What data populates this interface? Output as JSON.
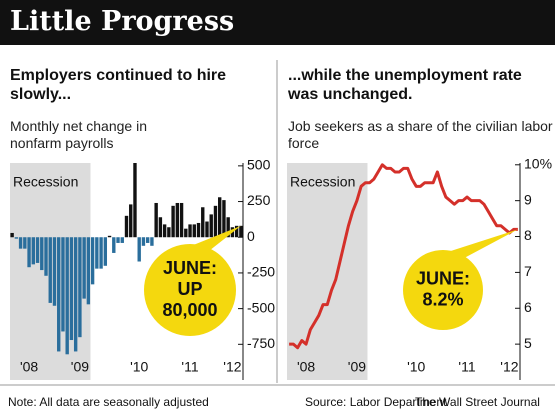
{
  "header": {
    "title": "Little Progress"
  },
  "chart_data": [
    {
      "type": "bar",
      "title": "Employers continued to hire slowly...",
      "subtitle": "Monthly net change in nonfarm payrolls",
      "categories": [
        null,
        null,
        null,
        null,
        "'08",
        null,
        null,
        null,
        null,
        null,
        null,
        null,
        null,
        null,
        null,
        null,
        "'09",
        null,
        null,
        null,
        null,
        null,
        null,
        null,
        null,
        null,
        null,
        null,
        null,
        null,
        "'10",
        null,
        null,
        null,
        null,
        null,
        null,
        null,
        null,
        null,
        null,
        null,
        "'11",
        null,
        null,
        null,
        null,
        null,
        null,
        null,
        null,
        null,
        "'12",
        null,
        null
      ],
      "values": [
        30,
        -10,
        -80,
        -80,
        -210,
        -190,
        -180,
        -230,
        -270,
        -460,
        -480,
        -800,
        -660,
        -820,
        -720,
        -800,
        -700,
        -430,
        -470,
        -330,
        -220,
        -220,
        -200,
        10,
        -110,
        -40,
        -40,
        150,
        230,
        520,
        -170,
        -60,
        -40,
        -60,
        240,
        140,
        90,
        70,
        220,
        240,
        240,
        60,
        90,
        90,
        100,
        210,
        110,
        160,
        220,
        280,
        260,
        140,
        70,
        80,
        80
      ],
      "color_positive": "#111111",
      "color_negative": "#2a6e9c",
      "ylim": [
        -1000,
        520
      ],
      "yticks": [
        500,
        250,
        0,
        -250,
        -500,
        -750
      ],
      "shade": {
        "label": "Recession",
        "from": 0,
        "to": 18
      },
      "callout": [
        "JUNE:",
        "UP",
        "80,000"
      ]
    },
    {
      "type": "line",
      "title": "...while the unemployment rate was unchanged.",
      "subtitle": "Job seekers as a share of the civilian labor force",
      "categories": [
        null,
        null,
        null,
        null,
        "'08",
        null,
        null,
        null,
        null,
        null,
        null,
        null,
        null,
        null,
        null,
        null,
        "'09",
        null,
        null,
        null,
        null,
        null,
        null,
        null,
        null,
        null,
        null,
        null,
        null,
        null,
        "'10",
        null,
        null,
        null,
        null,
        null,
        null,
        null,
        null,
        null,
        null,
        null,
        "'11",
        null,
        null,
        null,
        null,
        null,
        null,
        null,
        null,
        null,
        "'12",
        null,
        null
      ],
      "values": [
        5.0,
        5.0,
        4.9,
        5.1,
        5.0,
        5.4,
        5.6,
        5.8,
        6.1,
        6.1,
        6.5,
        6.8,
        7.3,
        7.8,
        8.3,
        8.7,
        9.0,
        9.4,
        9.5,
        9.5,
        9.6,
        9.8,
        10.0,
        9.9,
        9.9,
        9.8,
        9.8,
        9.9,
        9.9,
        9.6,
        9.4,
        9.4,
        9.5,
        9.5,
        9.5,
        9.8,
        9.4,
        9.1,
        9.0,
        8.9,
        9.0,
        9.0,
        9.1,
        9.0,
        9.0,
        9.0,
        8.9,
        8.7,
        8.5,
        8.3,
        8.3,
        8.2,
        8.1,
        8.2,
        8.2
      ],
      "color": "#d4302a",
      "ylim": [
        4.0,
        10.05
      ],
      "yticks": [
        {
          "value": 10,
          "label": "10%"
        },
        9,
        8,
        7,
        6,
        5
      ],
      "shade": {
        "label": "Recession",
        "from": 0,
        "to": 18
      },
      "callout": [
        "JUNE:",
        "8.2%"
      ]
    }
  ],
  "footer": {
    "note": "Note: All data are seasonally adjusted",
    "source": "Source: Labor Department",
    "credit": "The Wall Street Journal"
  }
}
